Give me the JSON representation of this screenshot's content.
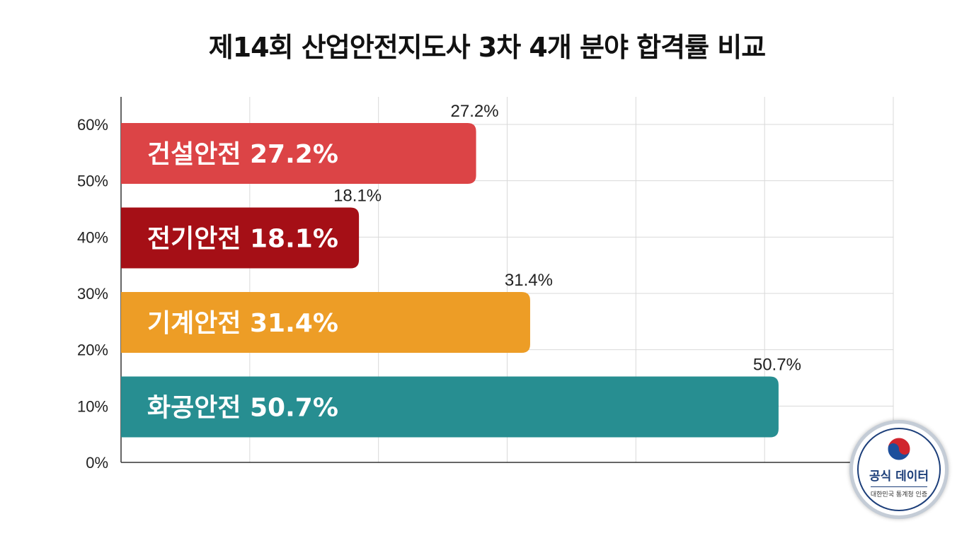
{
  "chart_data": {
    "type": "bar",
    "orientation": "horizontal",
    "title": "제14회 산업안전지도사 3차 4개 분야 합격률 비교",
    "y_tick_labels": [
      "0%",
      "10%",
      "20%",
      "30%",
      "40%",
      "50%",
      "60%"
    ],
    "grid": true,
    "categories": [
      "건설안전",
      "전기안전",
      "기계안전",
      "화공안전"
    ],
    "values": [
      27.2,
      18.1,
      31.4,
      50.7
    ],
    "value_labels": [
      "27.2%",
      "18.1%",
      "31.4%",
      "50.7%"
    ],
    "bar_labels": [
      "건설안전 27.2%",
      "전기안전 18.1%",
      "기계안전 31.4%",
      "화공안전 50.7%"
    ],
    "colors": [
      "#dc4446",
      "#a50f16",
      "#ed9d26",
      "#278e91"
    ],
    "xlim": [
      0,
      60
    ]
  },
  "badge": {
    "title": "공식 데이터",
    "subtitle": "대한민국 통계청 인증",
    "icon": "taegeuk-emblem-icon"
  }
}
